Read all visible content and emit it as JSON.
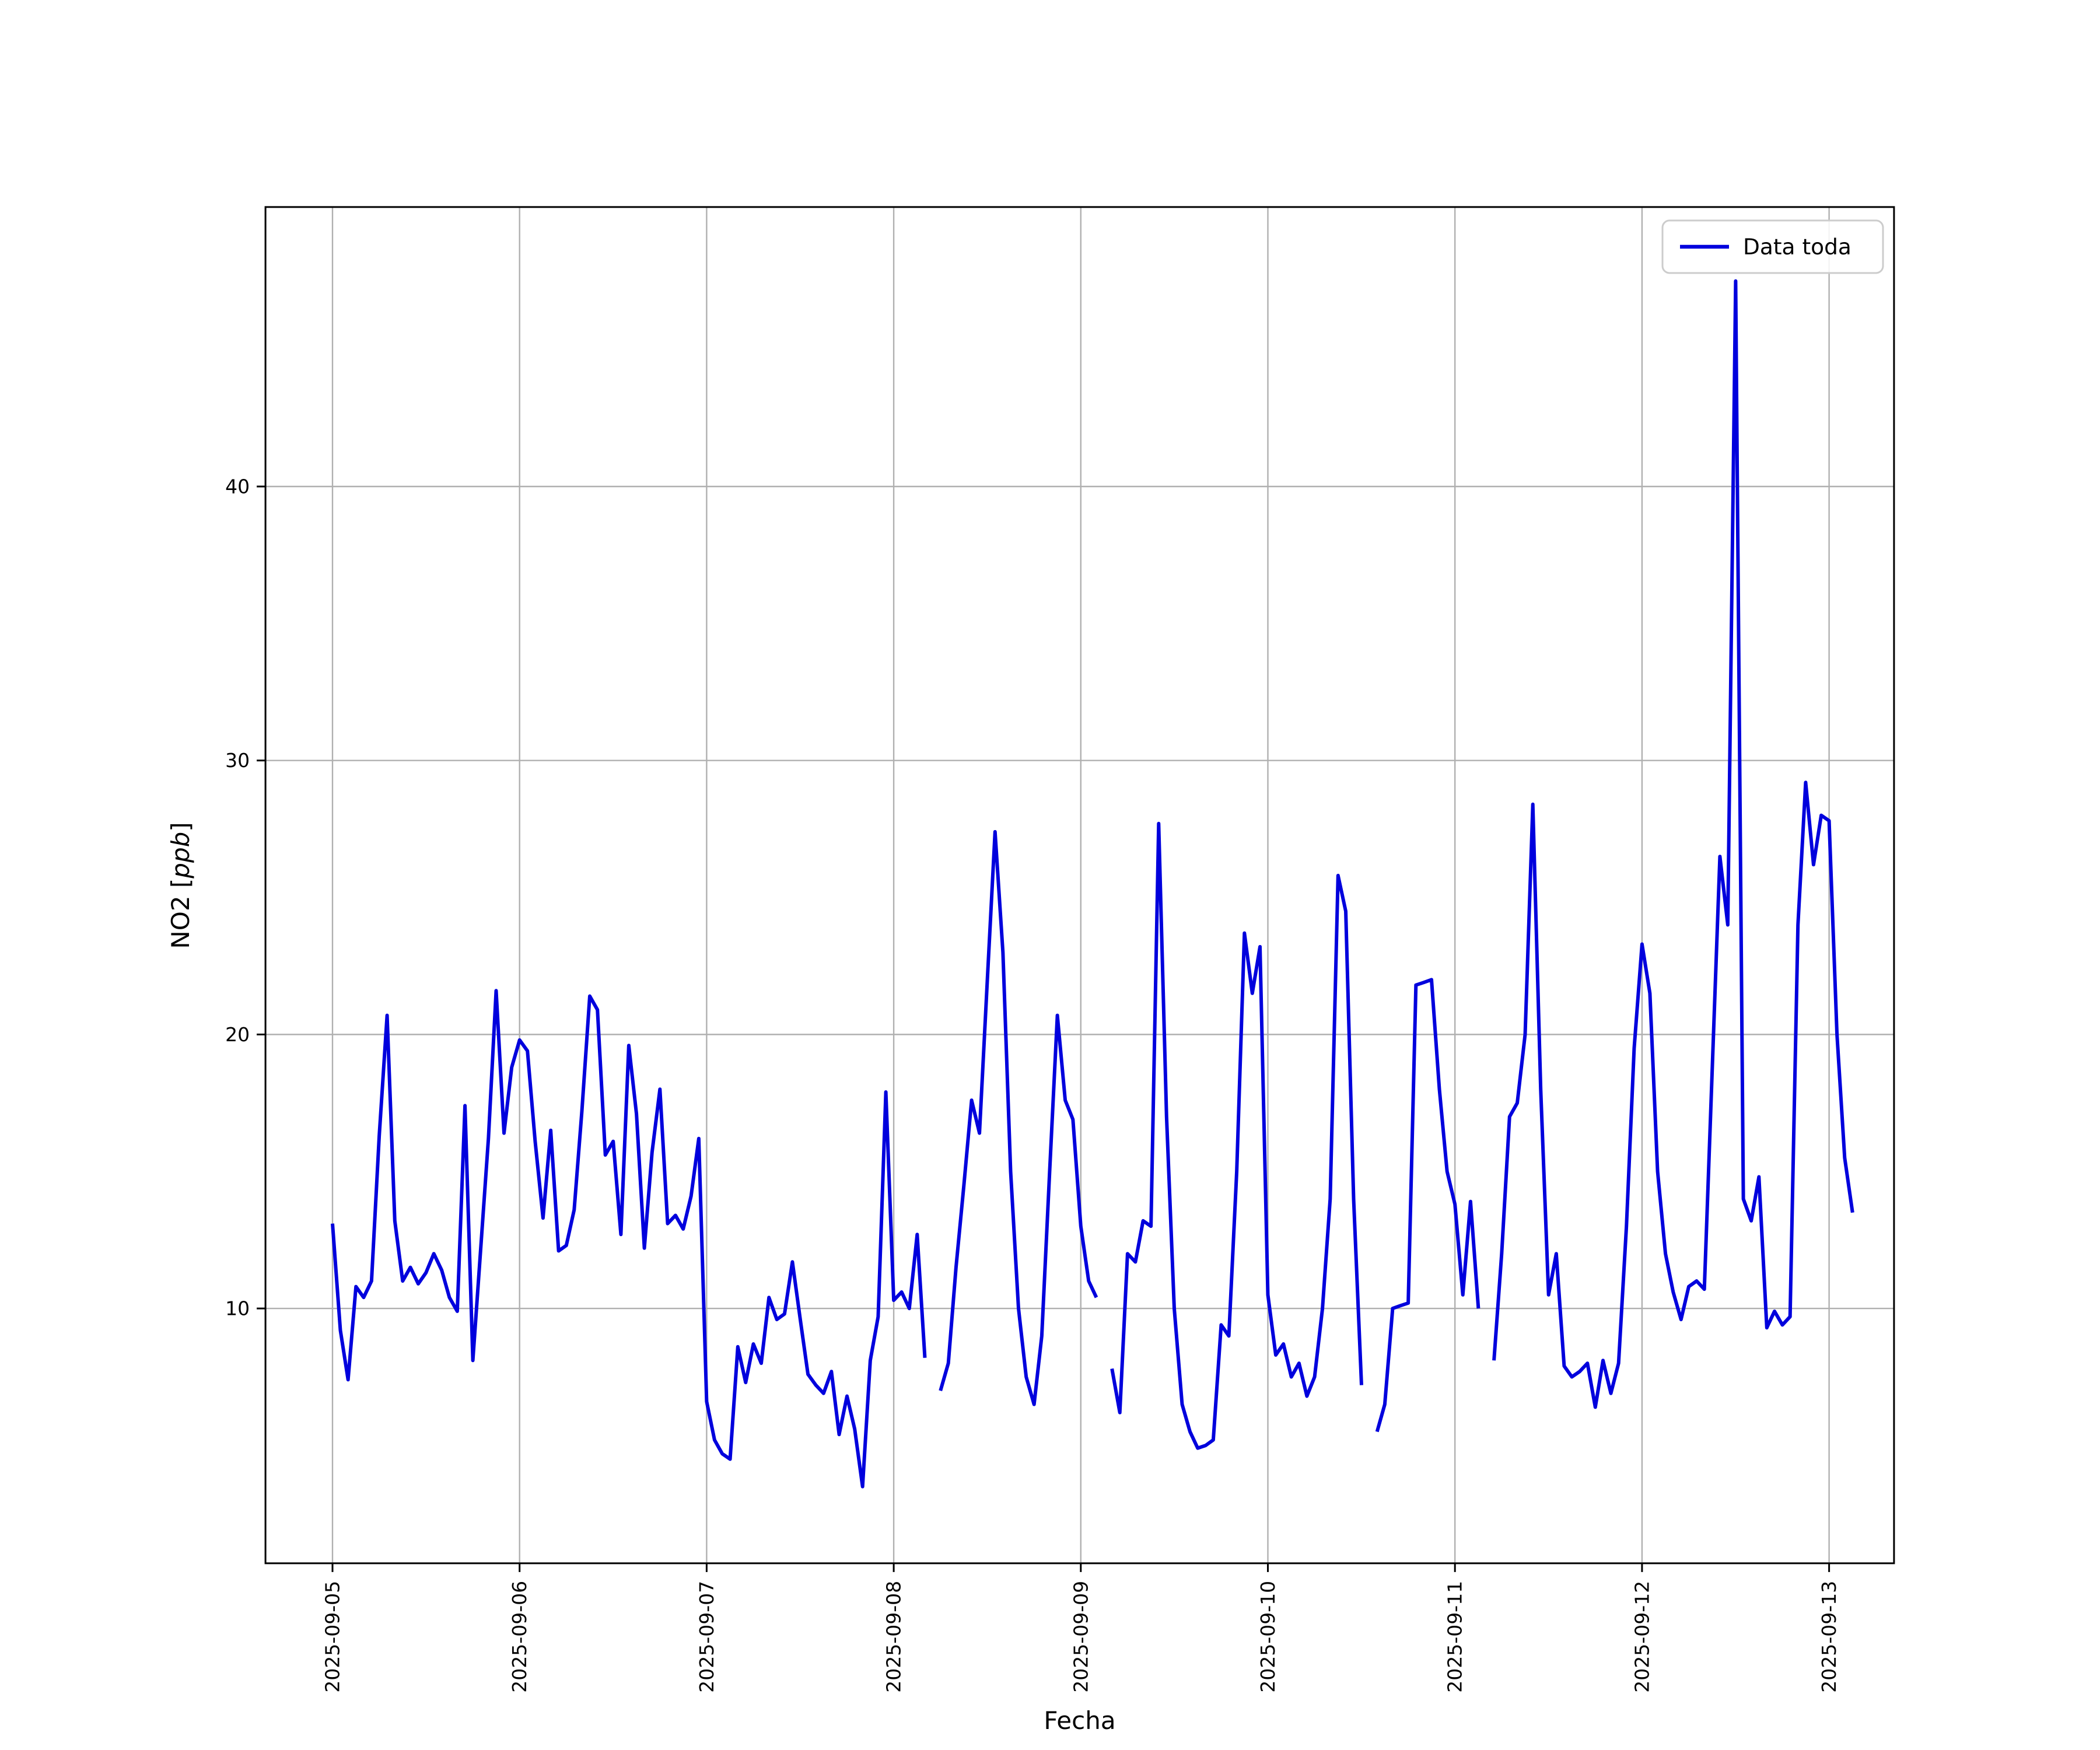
{
  "figure": {
    "background": "#ffffff",
    "ylabel_prefix": "NO2 [",
    "ylabel_italic": "ppb",
    "ylabel_suffix": "]"
  },
  "chart_data": {
    "type": "line",
    "title": "",
    "xlabel": "Fecha",
    "ylabel": "NO2 [ppb]",
    "legend": [
      "Data toda"
    ],
    "legend_position": "upper right",
    "grid": true,
    "grid_color": "#b0b0b0",
    "x_unit": "hours since 2025-09-05 00:00",
    "x_tick_labels": [
      "2025-09-05",
      "2025-09-06",
      "2025-09-07",
      "2025-09-08",
      "2025-09-09",
      "2025-09-10",
      "2025-09-11",
      "2025-09-12",
      "2025-09-13"
    ],
    "y_ticks": [
      10,
      20,
      30,
      40
    ],
    "ylim": [
      0.7,
      50.2
    ],
    "series": [
      {
        "name": "Data toda",
        "color": "#0000dd",
        "values": [
          13.1,
          9.2,
          7.4,
          10.8,
          10.4,
          11.0,
          16.3,
          20.7,
          13.2,
          11.0,
          11.5,
          10.9,
          11.3,
          12.0,
          11.4,
          10.4,
          9.9,
          17.4,
          8.1,
          12.1,
          16.2,
          21.6,
          16.4,
          18.8,
          19.8,
          19.4,
          16.1,
          13.3,
          16.5,
          12.1,
          12.3,
          13.6,
          17.2,
          21.4,
          20.9,
          15.6,
          16.1,
          12.7,
          19.6,
          17.1,
          12.2,
          15.7,
          18.0,
          13.1,
          13.4,
          12.9,
          14.1,
          16.2,
          6.6,
          5.2,
          4.7,
          4.5,
          8.6,
          7.3,
          8.7,
          8.0,
          10.4,
          9.6,
          9.8,
          11.7,
          9.6,
          7.6,
          7.2,
          6.9,
          7.7,
          5.4,
          6.8,
          5.6,
          3.5,
          8.1,
          9.7,
          17.9,
          10.3,
          10.6,
          10.0,
          12.7,
          8.2,
          null,
          7.0,
          8.0,
          11.5,
          14.5,
          17.6,
          16.4,
          22.0,
          27.4,
          23.0,
          15.0,
          10.0,
          7.5,
          6.5,
          9.0,
          15.0,
          20.7,
          17.6,
          16.9,
          13.0,
          11.0,
          10.4,
          null,
          7.8,
          6.2,
          12.0,
          11.7,
          13.2,
          13.0,
          27.7,
          17.0,
          10.0,
          6.5,
          5.5,
          4.9,
          5.0,
          5.2,
          9.4,
          9.0,
          15.0,
          23.7,
          21.5,
          23.2,
          10.5,
          8.3,
          8.7,
          7.5,
          8.0,
          6.8,
          7.5,
          10.0,
          14.0,
          25.8,
          24.5,
          14.0,
          7.2,
          null,
          5.5,
          6.5,
          10.0,
          10.1,
          10.2,
          21.8,
          21.9,
          22.0,
          18.0,
          15.0,
          13.8,
          10.5,
          13.9,
          10.0,
          null,
          8.1,
          12.0,
          17.0,
          17.5,
          20.0,
          28.4,
          18.0,
          10.5,
          12.0,
          7.9,
          7.5,
          7.7,
          8.0,
          6.4,
          8.1,
          6.9,
          8.0,
          13.0,
          19.5,
          23.3,
          21.5,
          15.0,
          12.0,
          10.6,
          9.6,
          10.8,
          11.0,
          10.7,
          18.7,
          26.5,
          24.0,
          47.5,
          14.0,
          13.2,
          14.8,
          9.3,
          9.9,
          9.4,
          9.7,
          24.0,
          29.2,
          26.2,
          28.0,
          27.8,
          20.0,
          15.5,
          13.5
        ]
      }
    ]
  }
}
